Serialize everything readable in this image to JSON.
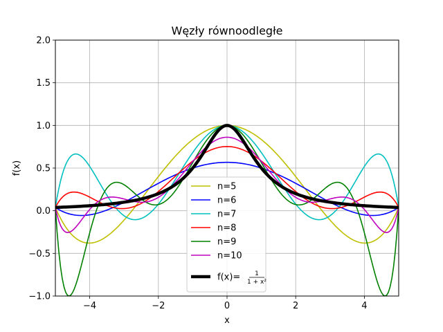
{
  "chart_data": {
    "type": "line",
    "title": "Węzły równoodległe",
    "xlabel": "x",
    "ylabel": "f(x)",
    "xlim": [
      -5,
      5
    ],
    "ylim": [
      -1.0,
      2.0
    ],
    "xticks": [
      -4,
      -2,
      0,
      2,
      4
    ],
    "xtick_labels": [
      "−4",
      "−2",
      "0",
      "2",
      "4"
    ],
    "yticks": [
      -1.0,
      -0.5,
      0.0,
      0.5,
      1.0,
      1.5,
      2.0
    ],
    "ytick_labels": [
      "−1.0",
      "−0.5",
      "0.0",
      "0.5",
      "1.0",
      "1.5",
      "2.0"
    ],
    "grid": true,
    "legend_position": "lower-center",
    "series": [
      {
        "name": "n=5",
        "color": "#bfbf00",
        "nodes": 5,
        "kind": "interpolant"
      },
      {
        "name": "n=6",
        "color": "#0000ff",
        "nodes": 6,
        "kind": "interpolant"
      },
      {
        "name": "n=7",
        "color": "#00bfbf",
        "nodes": 7,
        "kind": "interpolant"
      },
      {
        "name": "n=8",
        "color": "#ff0000",
        "nodes": 8,
        "kind": "interpolant"
      },
      {
        "name": "n=9",
        "color": "#008000",
        "nodes": 9,
        "kind": "interpolant"
      },
      {
        "name": "n=10",
        "color": "#bf00bf",
        "nodes": 10,
        "kind": "interpolant"
      },
      {
        "name": "f(x)=",
        "color": "#000000",
        "kind": "function",
        "formula_num": "1",
        "formula_den": "1 + x²"
      }
    ]
  }
}
